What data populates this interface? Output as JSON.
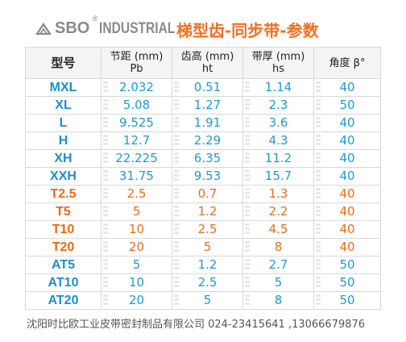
{
  "header": {
    "logo_text": "SBO",
    "logo_reg": "®",
    "logo_industrial": "INDUSTRIAL",
    "title": "梯型齿-同步带-参数"
  },
  "table": {
    "columns": [
      {
        "line1": "型号",
        "line2": ""
      },
      {
        "line1": "节距 (mm)",
        "line2": "Pb"
      },
      {
        "line1": "齿高 (mm)",
        "line2": "ht"
      },
      {
        "line1": "带厚 (mm)",
        "line2": "hs"
      },
      {
        "line1": "角度 β°",
        "line2": ""
      }
    ],
    "rows": [
      {
        "model": "MXL",
        "pitch": "2.032",
        "tooth": "0.51",
        "thick": "1.14",
        "angle": "40",
        "color": "blue"
      },
      {
        "model": "XL",
        "pitch": "5.08",
        "tooth": "1.27",
        "thick": "2.3",
        "angle": "50",
        "color": "blue"
      },
      {
        "model": "L",
        "pitch": "9.525",
        "tooth": "1.91",
        "thick": "3.6",
        "angle": "40",
        "color": "blue"
      },
      {
        "model": "H",
        "pitch": "12.7",
        "tooth": "2.29",
        "thick": "4.3",
        "angle": "40",
        "color": "blue"
      },
      {
        "model": "XH",
        "pitch": "22.225",
        "tooth": "6.35",
        "thick": "11.2",
        "angle": "40",
        "color": "blue"
      },
      {
        "model": "XXH",
        "pitch": "31.75",
        "tooth": "9.53",
        "thick": "15.7",
        "angle": "40",
        "color": "blue"
      },
      {
        "model": "T2.5",
        "pitch": "2.5",
        "tooth": "0.7",
        "thick": "1.3",
        "angle": "40",
        "color": "orange"
      },
      {
        "model": "T5",
        "pitch": "5",
        "tooth": "1.2",
        "thick": "2.2",
        "angle": "40",
        "color": "orange"
      },
      {
        "model": "T10",
        "pitch": "10",
        "tooth": "2.5",
        "thick": "4.5",
        "angle": "40",
        "color": "orange"
      },
      {
        "model": "T20",
        "pitch": "20",
        "tooth": "5",
        "thick": "8",
        "angle": "40",
        "color": "orange"
      },
      {
        "model": "AT5",
        "pitch": "5",
        "tooth": "1.2",
        "thick": "2.7",
        "angle": "50",
        "color": "blue"
      },
      {
        "model": "AT10",
        "pitch": "10",
        "tooth": "2.5",
        "thick": "5",
        "angle": "50",
        "color": "blue"
      },
      {
        "model": "AT20",
        "pitch": "20",
        "tooth": "5",
        "thick": "8",
        "angle": "50",
        "color": "blue"
      }
    ]
  },
  "footer": {
    "company": "沈阳时比欧工业皮带密封制品有限公司  024-23415641 ,13066679876"
  },
  "colors": {
    "blue": "#1c9bd6",
    "orange": "#ef6c1a",
    "title": "#f36f21"
  }
}
